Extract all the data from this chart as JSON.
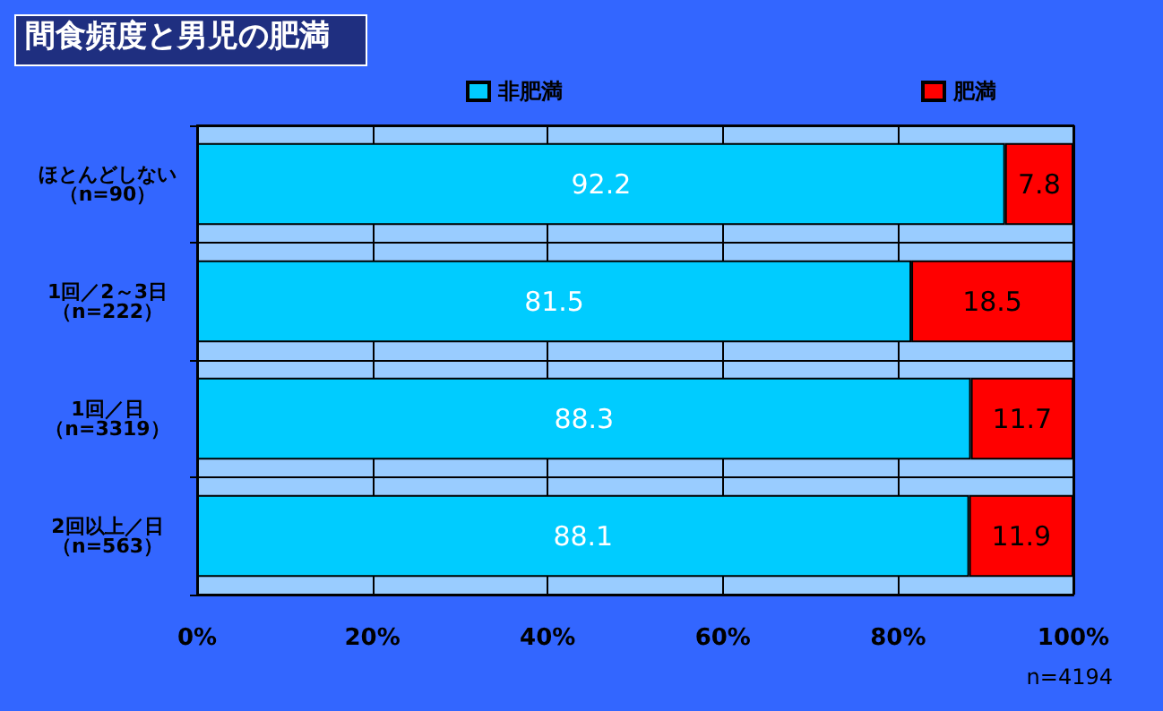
{
  "chart_data": {
    "type": "bar",
    "orientation": "horizontal",
    "stacked": true,
    "title": "間食頻度と男児の肥満",
    "categories": [
      "ほとんどしない（n=90）",
      "1回／2～3日（n=222）",
      "1回／日（n=3319）",
      "2回以上／日（n=563）"
    ],
    "series": [
      {
        "name": "非肥満",
        "color": "#00ccff",
        "values": [
          92.2,
          81.5,
          88.3,
          88.1
        ]
      },
      {
        "name": "肥満",
        "color": "#ff0000",
        "values": [
          7.8,
          18.5,
          11.7,
          11.9
        ]
      }
    ],
    "xlim": [
      0,
      100
    ],
    "xticks": [
      {
        "value": 0,
        "label": "0%"
      },
      {
        "value": 20,
        "label": "20%"
      },
      {
        "value": 40,
        "label": "40%"
      },
      {
        "value": 60,
        "label": "60%"
      },
      {
        "value": 80,
        "label": "80%"
      },
      {
        "value": 100,
        "label": "100%"
      }
    ],
    "data_labels": true,
    "grid": true,
    "legend": "top",
    "annotations": [
      "n=4194"
    ]
  }
}
